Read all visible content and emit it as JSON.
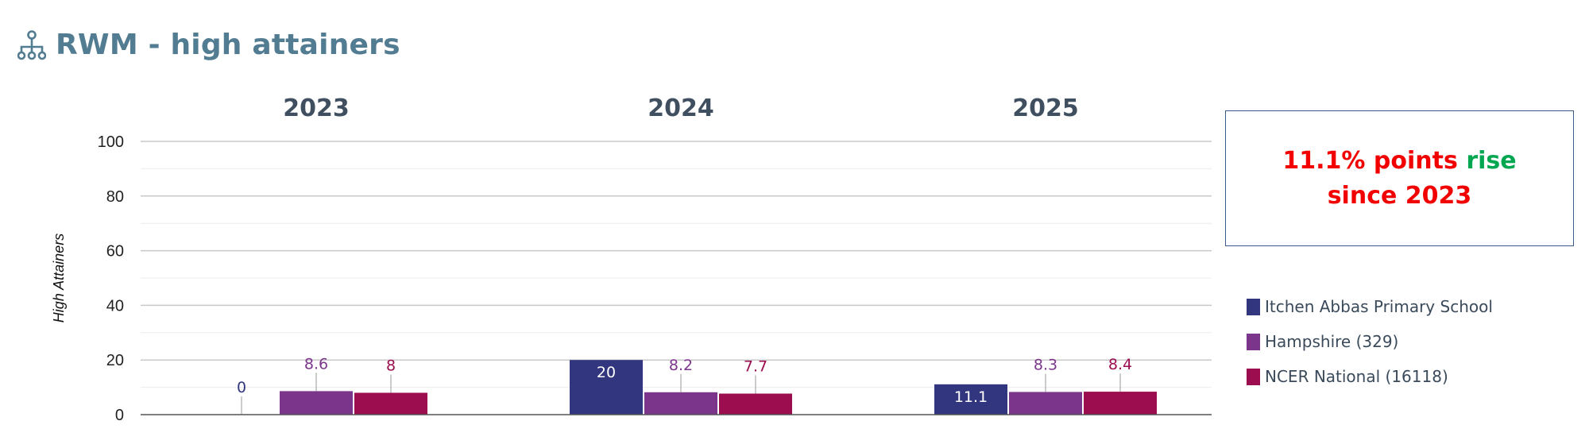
{
  "header": {
    "title": "RWM - high attainers",
    "icon": "hierarchy-icon"
  },
  "chart_data": {
    "type": "bar",
    "title": "",
    "categories": [
      "2023",
      "2024",
      "2025"
    ],
    "xlabel": "",
    "ylabel": "High Attainers",
    "ylim": [
      0,
      100
    ],
    "yticks": [
      "0",
      "20",
      "40",
      "60",
      "80",
      "100"
    ],
    "grid": true,
    "legend_position": "right",
    "series": [
      {
        "name": "Itchen Abbas Primary School",
        "values": [
          0,
          20,
          11.1
        ],
        "color": "#32367f",
        "labels": [
          "0",
          "20",
          "11.1"
        ]
      },
      {
        "name": "Hampshire (329)",
        "values": [
          8.6,
          8.2,
          8.3
        ],
        "color": "#7b368c",
        "labels": [
          "8.6",
          "8.2",
          "8.3"
        ]
      },
      {
        "name": "NCER National (16118)",
        "values": [
          8,
          7.7,
          8.4
        ],
        "color": "#9c0d4f",
        "labels": [
          "8",
          "7.7",
          "8.4"
        ]
      }
    ]
  },
  "callout": {
    "line1_red": "11.1% points",
    "line1_green": "rise",
    "line2": "since 2023",
    "red": "#f20000",
    "green": "#00a650"
  }
}
